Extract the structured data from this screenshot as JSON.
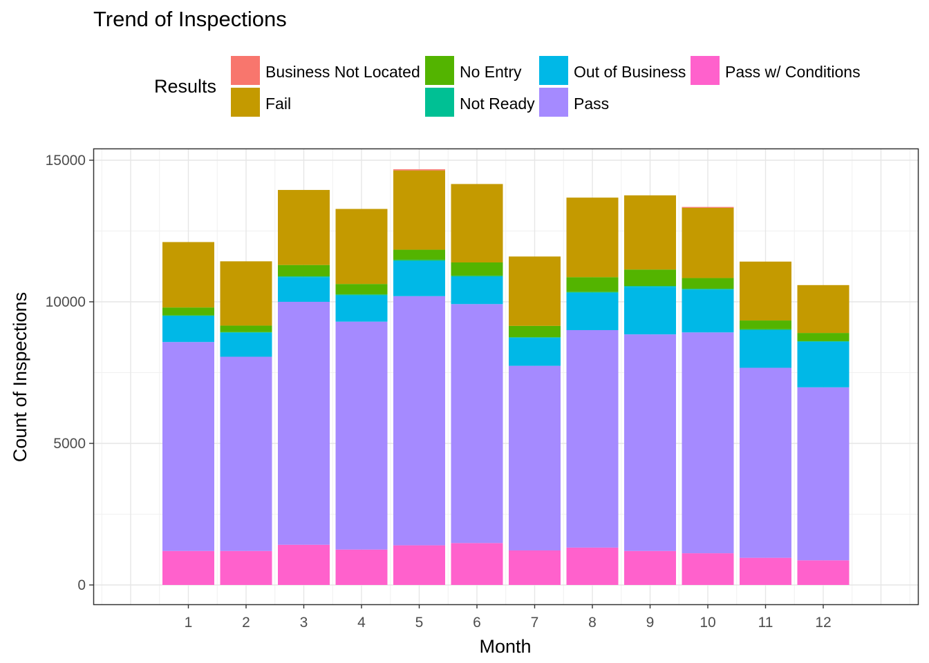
{
  "chart_data": {
    "type": "bar",
    "stacked": true,
    "title": "Trend of Inspections",
    "xlabel": "Month",
    "ylabel": "Count of Inspections",
    "categories": [
      "1",
      "2",
      "3",
      "4",
      "5",
      "6",
      "7",
      "8",
      "9",
      "10",
      "11",
      "12"
    ],
    "ylim": [
      -700,
      15400
    ],
    "yticks": [
      0,
      5000,
      10000,
      15000
    ],
    "yticklabels": [
      "0",
      "5000",
      "10000",
      "15000"
    ],
    "grid": true,
    "legend": {
      "title": "Results",
      "position": "top"
    },
    "series": [
      {
        "name": "Pass w/ Conditions",
        "color": "#FF61CC",
        "values": [
          1200,
          1200,
          1420,
          1250,
          1400,
          1480,
          1220,
          1320,
          1200,
          1120,
          960,
          870
        ]
      },
      {
        "name": "Pass",
        "color": "#A58AFF",
        "values": [
          7380,
          6860,
          8580,
          8050,
          8800,
          8440,
          6520,
          7680,
          7650,
          7800,
          6710,
          6110
        ]
      },
      {
        "name": "Out of Business",
        "color": "#00B8E7",
        "values": [
          920,
          850,
          870,
          930,
          1240,
          970,
          990,
          1320,
          1680,
          1510,
          1330,
          1610
        ]
      },
      {
        "name": "Not Ready",
        "color": "#00C094",
        "values": [
          20,
          20,
          30,
          30,
          40,
          30,
          20,
          30,
          30,
          30,
          30,
          20
        ]
      },
      {
        "name": "No Entry",
        "color": "#53B400",
        "values": [
          280,
          230,
          400,
          370,
          360,
          470,
          400,
          520,
          580,
          380,
          310,
          290
        ]
      },
      {
        "name": "Fail",
        "color": "#C49A00",
        "values": [
          2310,
          2270,
          2650,
          2650,
          2800,
          2770,
          2450,
          2810,
          2620,
          2480,
          2080,
          1690
        ]
      },
      {
        "name": "Business Not Located",
        "color": "#F8766D",
        "values": [
          0,
          0,
          0,
          0,
          40,
          0,
          0,
          0,
          0,
          30,
          0,
          0
        ]
      }
    ]
  }
}
